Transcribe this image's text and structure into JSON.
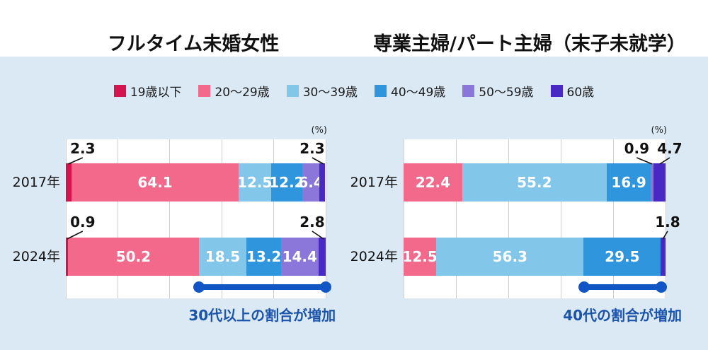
{
  "page": {
    "background": "#ffffff",
    "panel_background": "#dbe9f5"
  },
  "colors": {
    "segments": [
      "#d5134e",
      "#f2698c",
      "#82c6e9",
      "#2f96de",
      "#8a77d9",
      "#4929c4"
    ],
    "gridline": "#cfcfcf",
    "bar_value_text": "#ffffff",
    "callout_text": "#111111",
    "increase_line": "#1156c4",
    "annotation_text": "#1b54ab"
  },
  "legend": {
    "items": [
      {
        "label": "19歳以下",
        "color": "#d5134e"
      },
      {
        "label": "20〜29歳",
        "color": "#f2698c"
      },
      {
        "label": "30〜39歳",
        "color": "#82c6e9"
      },
      {
        "label": "40〜49歳",
        "color": "#2f96de"
      },
      {
        "label": "50〜59歳",
        "color": "#8a77d9"
      },
      {
        "label": "60歳",
        "color": "#4929c4"
      }
    ]
  },
  "chart_data": [
    {
      "type": "bar",
      "orientation": "horizontal-stacked",
      "title": "フルタイム未婚女性",
      "unit": "(%)",
      "xlim": [
        0,
        100
      ],
      "grid_step": 20,
      "grid": true,
      "groups": [
        "19歳以下",
        "20〜29歳",
        "30〜39歳",
        "40〜49歳",
        "50〜59歳",
        "60歳"
      ],
      "rows": [
        {
          "label": "2017年",
          "values": [
            2.3,
            64.1,
            12.5,
            12.2,
            6.4,
            2.3
          ]
        },
        {
          "label": "2024年",
          "values": [
            0.9,
            50.2,
            18.5,
            13.2,
            14.4,
            2.8
          ]
        }
      ],
      "callout_layout": [
        {
          "row": 0,
          "seg": 0,
          "label_pct": 6.5,
          "target_pct": 0.9
        },
        {
          "row": 0,
          "seg": 5,
          "label_pct": 94.8,
          "target_pct": 99.2
        },
        {
          "row": 1,
          "seg": 0,
          "label_pct": 6.5,
          "target_pct": 0.5
        },
        {
          "row": 1,
          "seg": 5,
          "label_pct": 94.8,
          "target_pct": 99.2
        }
      ],
      "annotation": {
        "text": "30代以上の割合が増加",
        "from_pct": 51.1,
        "to_pct": 100
      }
    },
    {
      "type": "bar",
      "orientation": "horizontal-stacked",
      "title": "専業主婦/パート主婦（末子未就学）",
      "unit": "(%)",
      "xlim": [
        0,
        100
      ],
      "grid_step": 20,
      "grid": true,
      "groups": [
        "19歳以下",
        "20〜29歳",
        "30〜39歳",
        "40〜49歳",
        "50〜59歳",
        "60歳"
      ],
      "rows": [
        {
          "label": "2017年",
          "values": [
            0,
            22.4,
            55.2,
            16.9,
            0.9,
            4.7
          ]
        },
        {
          "label": "2024年",
          "values": [
            0,
            12.5,
            56.3,
            29.5,
            0,
            1.8
          ]
        }
      ],
      "callout_layout": [
        {
          "row": 0,
          "seg": 4,
          "label_pct": 89.0,
          "target_pct": 94.9
        },
        {
          "row": 0,
          "seg": 5,
          "label_pct": 101.6,
          "target_pct": 97.8
        },
        {
          "row": 1,
          "seg": 5,
          "label_pct": 100.8,
          "target_pct": 99.0
        }
      ],
      "annotation": {
        "text": "40代の割合が増加",
        "from_pct": 68.8,
        "to_pct": 98.3
      }
    }
  ]
}
